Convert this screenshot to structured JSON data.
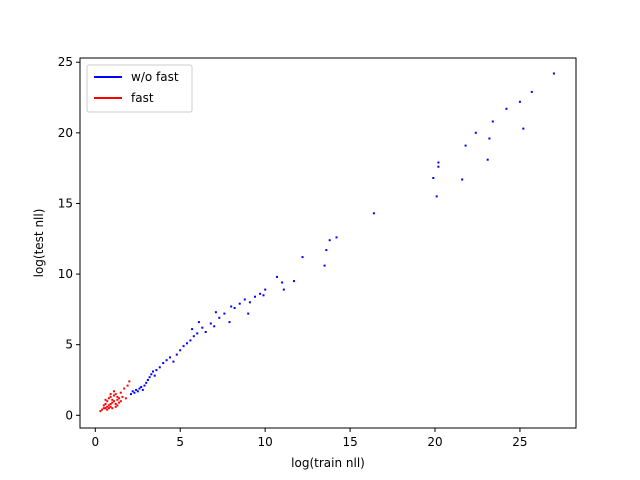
{
  "chart_data": {
    "type": "scatter",
    "xlabel": "log(train nll)",
    "ylabel": "log(test nll)",
    "xlim": [
      -0.9,
      28.3
    ],
    "ylim": [
      -0.9,
      25.3
    ],
    "xticks": [
      0,
      5,
      10,
      15,
      20,
      25
    ],
    "yticks": [
      0,
      5,
      10,
      15,
      20,
      25
    ],
    "grid": false,
    "legend": {
      "placement": "top-left"
    },
    "series": [
      {
        "name": "w/o fast",
        "color": "#0000ff",
        "points": [
          [
            2.1,
            1.5
          ],
          [
            2.2,
            1.7
          ],
          [
            2.3,
            1.6
          ],
          [
            2.4,
            1.8
          ],
          [
            2.5,
            1.7
          ],
          [
            2.6,
            1.9
          ],
          [
            2.7,
            2.0
          ],
          [
            2.8,
            1.8
          ],
          [
            2.9,
            2.1
          ],
          [
            3.0,
            2.3
          ],
          [
            3.1,
            2.5
          ],
          [
            3.2,
            2.7
          ],
          [
            3.3,
            2.9
          ],
          [
            3.4,
            3.1
          ],
          [
            3.5,
            2.8
          ],
          [
            3.6,
            3.2
          ],
          [
            3.8,
            3.4
          ],
          [
            4.0,
            3.7
          ],
          [
            4.2,
            3.9
          ],
          [
            4.4,
            4.1
          ],
          [
            4.6,
            3.8
          ],
          [
            4.8,
            4.3
          ],
          [
            5.0,
            4.6
          ],
          [
            5.2,
            4.9
          ],
          [
            5.4,
            5.1
          ],
          [
            5.6,
            5.3
          ],
          [
            5.8,
            5.6
          ],
          [
            6.0,
            5.8
          ],
          [
            6.3,
            6.2
          ],
          [
            6.5,
            5.9
          ],
          [
            6.8,
            6.5
          ],
          [
            7.0,
            6.3
          ],
          [
            7.3,
            6.9
          ],
          [
            7.6,
            7.2
          ],
          [
            7.9,
            6.6
          ],
          [
            8.2,
            7.6
          ],
          [
            8.5,
            7.9
          ],
          [
            8.8,
            8.2
          ],
          [
            9.1,
            8.0
          ],
          [
            9.4,
            8.4
          ],
          [
            9.7,
            8.6
          ],
          [
            10.0,
            8.9
          ],
          [
            5.7,
            6.1
          ],
          [
            6.1,
            6.6
          ],
          [
            7.1,
            7.3
          ],
          [
            8.0,
            7.7
          ],
          [
            9.0,
            7.2
          ],
          [
            9.9,
            8.5
          ],
          [
            10.7,
            9.8
          ],
          [
            11.0,
            9.4
          ],
          [
            11.1,
            8.9
          ],
          [
            11.7,
            9.5
          ],
          [
            12.2,
            11.2
          ],
          [
            13.5,
            10.6
          ],
          [
            13.6,
            11.7
          ],
          [
            13.8,
            12.4
          ],
          [
            14.2,
            12.6
          ],
          [
            16.4,
            14.3
          ],
          [
            19.9,
            16.8
          ],
          [
            20.1,
            15.5
          ],
          [
            20.2,
            17.6
          ],
          [
            20.2,
            17.9
          ],
          [
            21.6,
            16.7
          ],
          [
            21.8,
            19.1
          ],
          [
            22.4,
            20.0
          ],
          [
            23.1,
            18.1
          ],
          [
            23.2,
            19.6
          ],
          [
            23.4,
            20.8
          ],
          [
            24.2,
            21.7
          ],
          [
            25.0,
            22.2
          ],
          [
            25.2,
            20.3
          ],
          [
            25.7,
            22.9
          ],
          [
            27.0,
            24.2
          ]
        ]
      },
      {
        "name": "fast",
        "color": "#ff0000",
        "points": [
          [
            0.4,
            0.4
          ],
          [
            0.5,
            0.5
          ],
          [
            0.6,
            0.5
          ],
          [
            0.7,
            0.6
          ],
          [
            0.8,
            0.7
          ],
          [
            0.9,
            0.8
          ],
          [
            1.0,
            0.9
          ],
          [
            1.1,
            1.0
          ],
          [
            1.2,
            0.8
          ],
          [
            1.3,
            1.1
          ],
          [
            1.4,
            1.2
          ],
          [
            0.6,
            0.8
          ],
          [
            0.7,
            1.0
          ],
          [
            0.8,
            1.2
          ],
          [
            0.9,
            1.3
          ],
          [
            1.0,
            1.1
          ],
          [
            1.1,
            1.4
          ],
          [
            1.2,
            1.5
          ],
          [
            1.3,
            1.3
          ],
          [
            0.5,
            0.7
          ],
          [
            0.9,
            0.6
          ],
          [
            1.0,
            0.5
          ],
          [
            1.2,
            0.6
          ],
          [
            1.4,
            0.9
          ],
          [
            1.5,
            1.0
          ],
          [
            0.7,
            0.4
          ],
          [
            0.8,
            0.5
          ],
          [
            1.5,
            1.6
          ],
          [
            1.7,
            1.9
          ],
          [
            1.9,
            2.1
          ],
          [
            2.0,
            2.4
          ],
          [
            1.6,
            1.3
          ],
          [
            0.3,
            0.3
          ],
          [
            0.6,
            1.1
          ],
          [
            1.1,
            1.7
          ],
          [
            0.9,
            1.5
          ],
          [
            1.8,
            1.2
          ],
          [
            1.3,
            0.7
          ]
        ]
      }
    ]
  }
}
